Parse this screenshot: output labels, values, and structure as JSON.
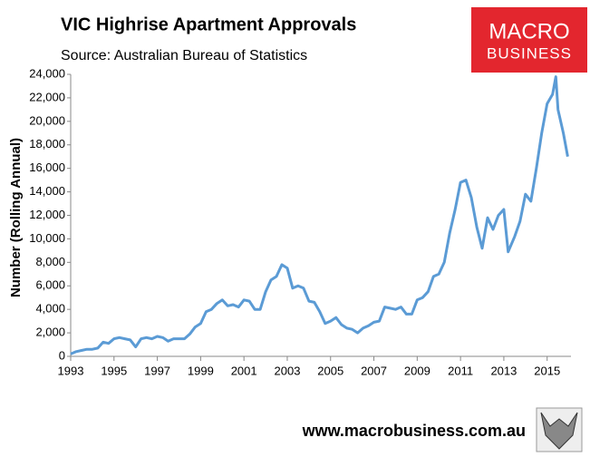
{
  "chart_data": {
    "type": "line",
    "title": "VIC Highrise Apartment Approvals",
    "subtitle": "Source: Australian Bureau of Statistics",
    "y_label": "Number (Rolling Annual)",
    "logo": [
      "MACRO",
      "BUSINESS"
    ],
    "footer": "www.macrobusiness.com.au",
    "x": [
      1993.0,
      1993.25,
      1993.5,
      1993.75,
      1994.0,
      1994.25,
      1994.5,
      1994.75,
      1995.0,
      1995.25,
      1995.5,
      1995.75,
      1996.0,
      1996.25,
      1996.5,
      1996.75,
      1997.0,
      1997.25,
      1997.5,
      1997.75,
      1998.0,
      1998.25,
      1998.5,
      1998.75,
      1999.0,
      1999.25,
      1999.5,
      1999.75,
      2000.0,
      2000.25,
      2000.5,
      2000.75,
      2001.0,
      2001.25,
      2001.5,
      2001.75,
      2002.0,
      2002.25,
      2002.5,
      2002.75,
      2003.0,
      2003.25,
      2003.5,
      2003.75,
      2004.0,
      2004.25,
      2004.5,
      2004.75,
      2005.0,
      2005.25,
      2005.5,
      2005.75,
      2006.0,
      2006.25,
      2006.5,
      2006.75,
      2007.0,
      2007.25,
      2007.5,
      2007.75,
      2008.0,
      2008.25,
      2008.5,
      2008.75,
      2009.0,
      2009.25,
      2009.5,
      2009.75,
      2010.0,
      2010.25,
      2010.5,
      2010.75,
      2011.0,
      2011.25,
      2011.5,
      2011.75,
      2012.0,
      2012.25,
      2012.5,
      2012.75,
      2013.0,
      2013.2,
      2013.5,
      2013.75,
      2014.0,
      2014.25,
      2014.5,
      2014.75,
      2015.0,
      2015.25,
      2015.4,
      2015.5,
      2015.75,
      2015.95
    ],
    "series": [
      {
        "name": "VIC Highrise Apartment Approvals",
        "color": "#5b9bd5",
        "values": [
          200,
          400,
          500,
          600,
          600,
          700,
          1200,
          1100,
          1500,
          1600,
          1500,
          1400,
          800,
          1500,
          1600,
          1500,
          1700,
          1600,
          1300,
          1500,
          1500,
          1500,
          1900,
          2500,
          2800,
          3800,
          4000,
          4500,
          4800,
          4300,
          4400,
          4200,
          4800,
          4700,
          4000,
          4000,
          5500,
          6500,
          6800,
          7800,
          7500,
          5800,
          6000,
          5800,
          4700,
          4600,
          3800,
          2800,
          3000,
          3300,
          2700,
          2400,
          2300,
          2000,
          2400,
          2600,
          2900,
          3000,
          4200,
          4100,
          4000,
          4200,
          3600,
          3600,
          4800,
          5000,
          5500,
          6800,
          7000,
          8000,
          10500,
          12500,
          14800,
          15000,
          13500,
          11000,
          9200,
          11800,
          10800,
          12000,
          12500,
          8900,
          10200,
          11500,
          13800,
          13200,
          16000,
          19000,
          21500,
          22300,
          23800,
          21000,
          19000,
          17000
        ]
      }
    ],
    "xlim": [
      1993,
      2016.1
    ],
    "xticks": [
      1993,
      1995,
      1997,
      1999,
      2001,
      2003,
      2005,
      2007,
      2009,
      2011,
      2013,
      2015
    ],
    "ylim": [
      0,
      24000
    ],
    "yticks": [
      0,
      {
        "value": 2000,
        "label": "2,000"
      },
      {
        "value": 4000,
        "label": "4,000"
      },
      {
        "value": 6000,
        "label": "6,000"
      },
      {
        "value": 8000,
        "label": "8,000"
      },
      {
        "value": 10000,
        "label": "10,000"
      },
      {
        "value": 12000,
        "label": "12,000"
      },
      {
        "value": 14000,
        "label": "14,000"
      },
      {
        "value": 16000,
        "label": "16,000"
      },
      {
        "value": 18000,
        "label": "18,000"
      },
      {
        "value": 20000,
        "label": "20,000"
      },
      {
        "value": 22000,
        "label": "22,000"
      },
      {
        "value": 24000,
        "label": "24,000"
      }
    ],
    "grid": false
  }
}
